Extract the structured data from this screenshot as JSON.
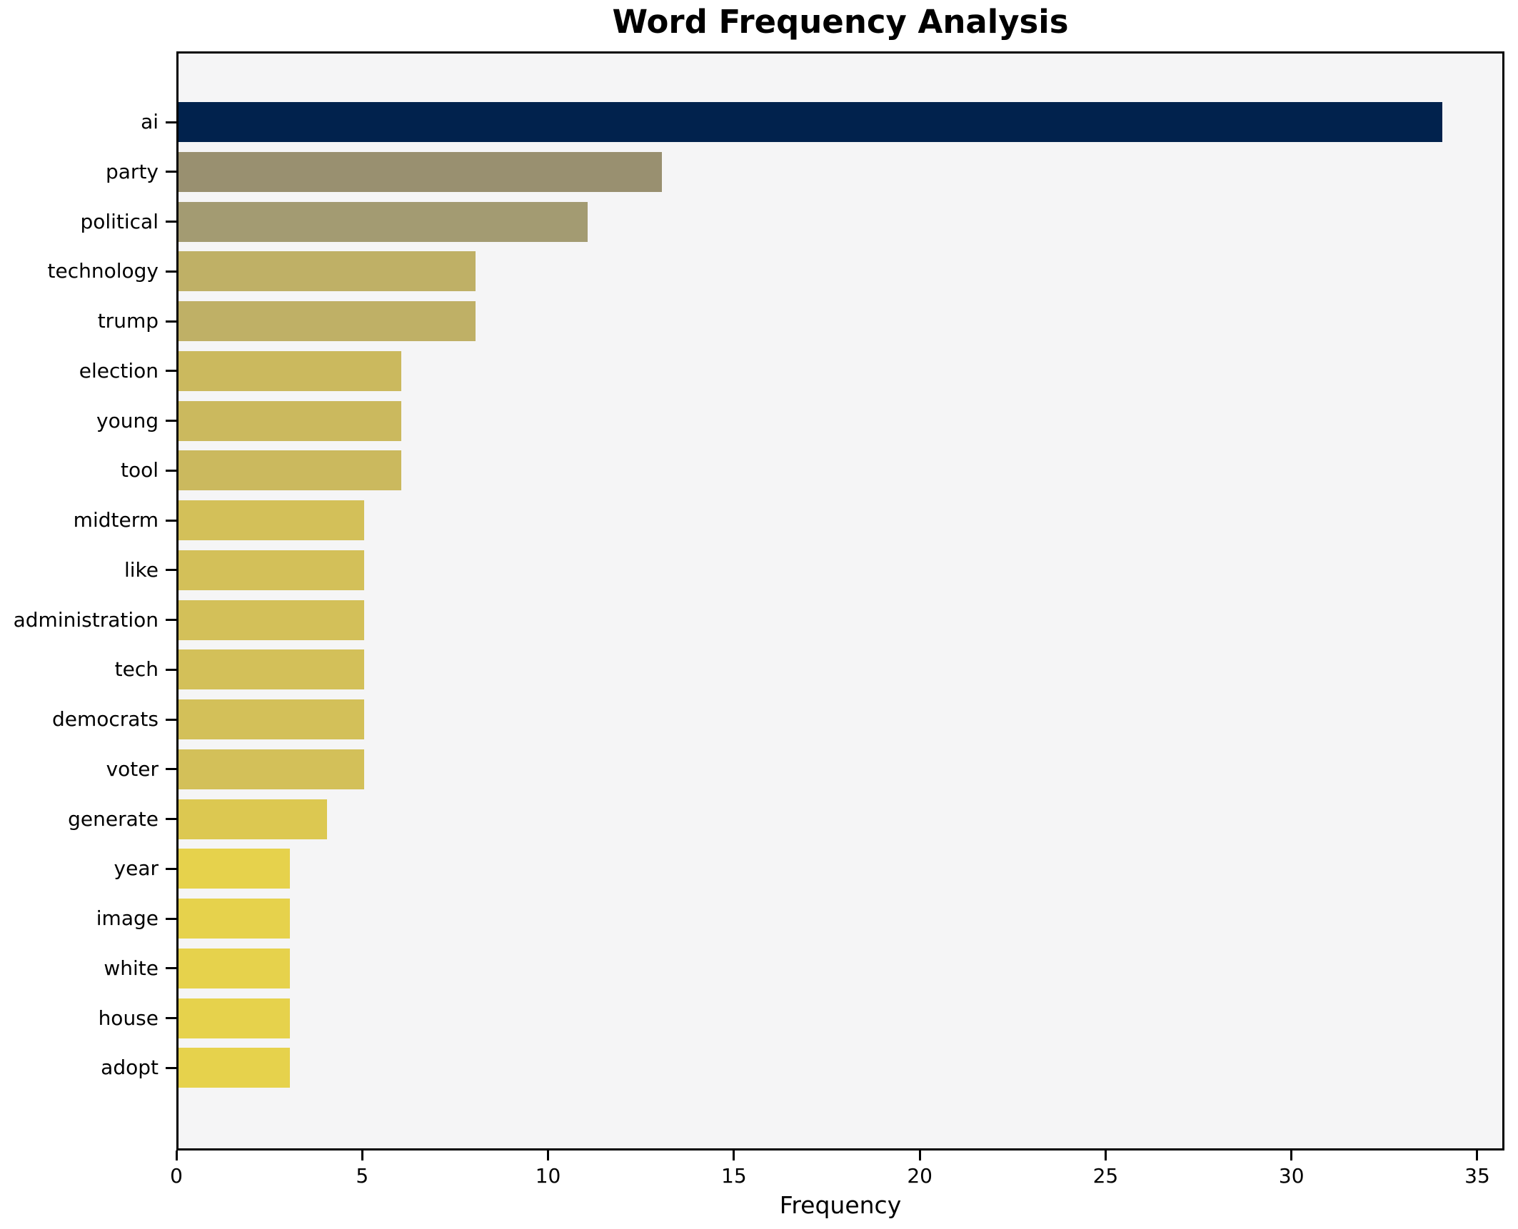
{
  "chart_data": {
    "type": "bar",
    "orientation": "horizontal",
    "title": "Word Frequency Analysis",
    "xlabel": "Frequency",
    "ylabel": "",
    "categories": [
      "ai",
      "party",
      "political",
      "technology",
      "trump",
      "election",
      "young",
      "tool",
      "midterm",
      "like",
      "administration",
      "tech",
      "democrats",
      "voter",
      "generate",
      "year",
      "image",
      "white",
      "house",
      "adopt"
    ],
    "values": [
      34,
      13,
      11,
      8,
      8,
      6,
      6,
      6,
      5,
      5,
      5,
      5,
      5,
      5,
      4,
      3,
      3,
      3,
      3,
      3
    ],
    "bar_colors": [
      "#01224d",
      "#999070",
      "#a39b72",
      "#bfb066",
      "#bfb066",
      "#cbb95e",
      "#cbb95e",
      "#cbb95e",
      "#d3c059",
      "#d3c059",
      "#d3c059",
      "#d3c059",
      "#d3c059",
      "#d3c059",
      "#dcc851",
      "#e6d24c",
      "#e6d24c",
      "#e6d24c",
      "#e6d24c",
      "#e6d24c"
    ],
    "xticks": [
      0,
      5,
      10,
      15,
      20,
      25,
      30,
      35
    ],
    "xlim": [
      0,
      35.73
    ],
    "grid": false,
    "legend_position": "none",
    "colors": {
      "figure_background": "#ffffff",
      "plot_background": "#f5f5f6",
      "spine": "#000000",
      "text": "#000000"
    }
  }
}
